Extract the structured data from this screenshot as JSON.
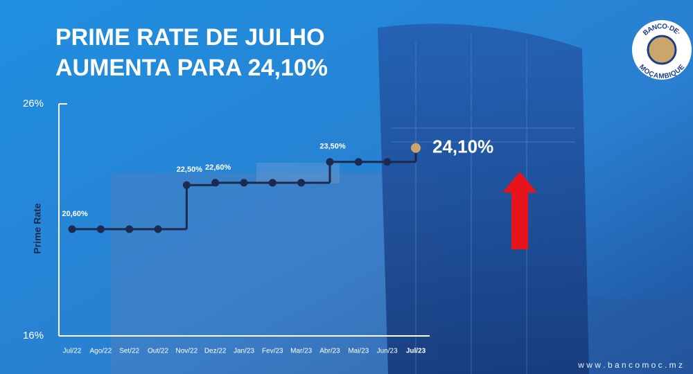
{
  "chart_data": {
    "type": "step",
    "title": [
      "PRIME RATE DE JULHO",
      "AUMENTA PARA 24,10%"
    ],
    "y_label": "Prime Rate",
    "categories": [
      "Jul/22",
      "Ago/22",
      "Set/22",
      "Out/22",
      "Nov/22",
      "Dez/22",
      "Jan/23",
      "Fev/23",
      "Mar/23",
      "Abr/23",
      "Mai/23",
      "Jun/23",
      "Jul/23"
    ],
    "values": [
      20.6,
      20.6,
      20.6,
      20.6,
      22.5,
      22.6,
      22.6,
      22.6,
      22.6,
      23.5,
      23.5,
      23.5,
      24.1
    ],
    "value_labels": [
      "20,60%",
      null,
      null,
      null,
      "22,50%",
      "22,60%",
      null,
      null,
      null,
      "23,50%",
      null,
      null,
      "24,10%"
    ],
    "color": "#1c2a50",
    "highlight_color": "#c9a66b",
    "ylim": [
      16,
      26
    ],
    "yticks": [
      {
        "value": 16,
        "label": "16%"
      },
      {
        "value": 26,
        "label": "26%"
      }
    ],
    "grid": false
  },
  "logo": {
    "top": "BANCO·DE·",
    "bottom": "MOÇAMBIQUE"
  },
  "footer": "w w w . b a n c o m o c . m z"
}
